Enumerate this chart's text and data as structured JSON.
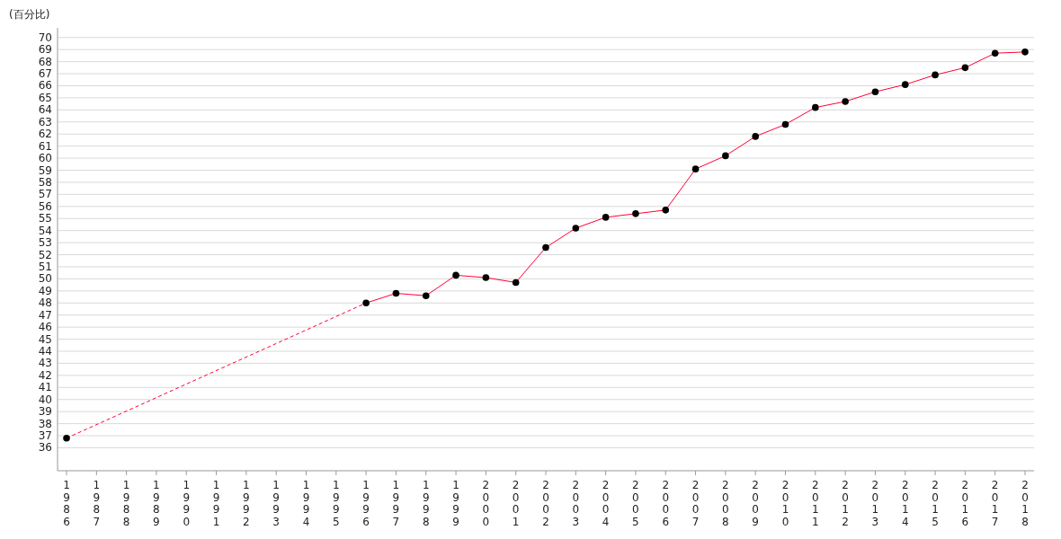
{
  "chart_data": {
    "type": "line",
    "ylabel": "(百分比)",
    "categories": [
      "1986",
      "1987",
      "1988",
      "1989",
      "1990",
      "1991",
      "1992",
      "1993",
      "1994",
      "1995",
      "1996",
      "1997",
      "1998",
      "1999",
      "2000",
      "2001",
      "2002",
      "2003",
      "2004",
      "2005",
      "2006",
      "2007",
      "2008",
      "2009",
      "2010",
      "2011",
      "2012",
      "2013",
      "2014",
      "2015",
      "2016",
      "2017",
      "2018"
    ],
    "series": [
      {
        "color": "#ff0033",
        "values": [
          36.8,
          null,
          null,
          null,
          null,
          null,
          null,
          null,
          null,
          null,
          48.0,
          48.8,
          48.6,
          50.3,
          50.1,
          49.7,
          52.6,
          54.2,
          55.1,
          55.4,
          55.7,
          59.1,
          60.2,
          61.8,
          62.8,
          64.2,
          64.7,
          65.5,
          66.1,
          66.9,
          67.5,
          68.7,
          68.8
        ]
      }
    ],
    "ylim": [
      34.1,
      70.8
    ],
    "yticks": [
      36,
      37,
      38,
      39,
      40,
      41,
      42,
      43,
      44,
      45,
      46,
      47,
      48,
      49,
      50,
      51,
      52,
      53,
      54,
      55,
      56,
      57,
      58,
      59,
      60,
      61,
      62,
      63,
      64,
      65,
      66,
      67,
      68,
      69,
      70
    ],
    "grid": "y",
    "marker": "circle",
    "line_style": "solid"
  }
}
